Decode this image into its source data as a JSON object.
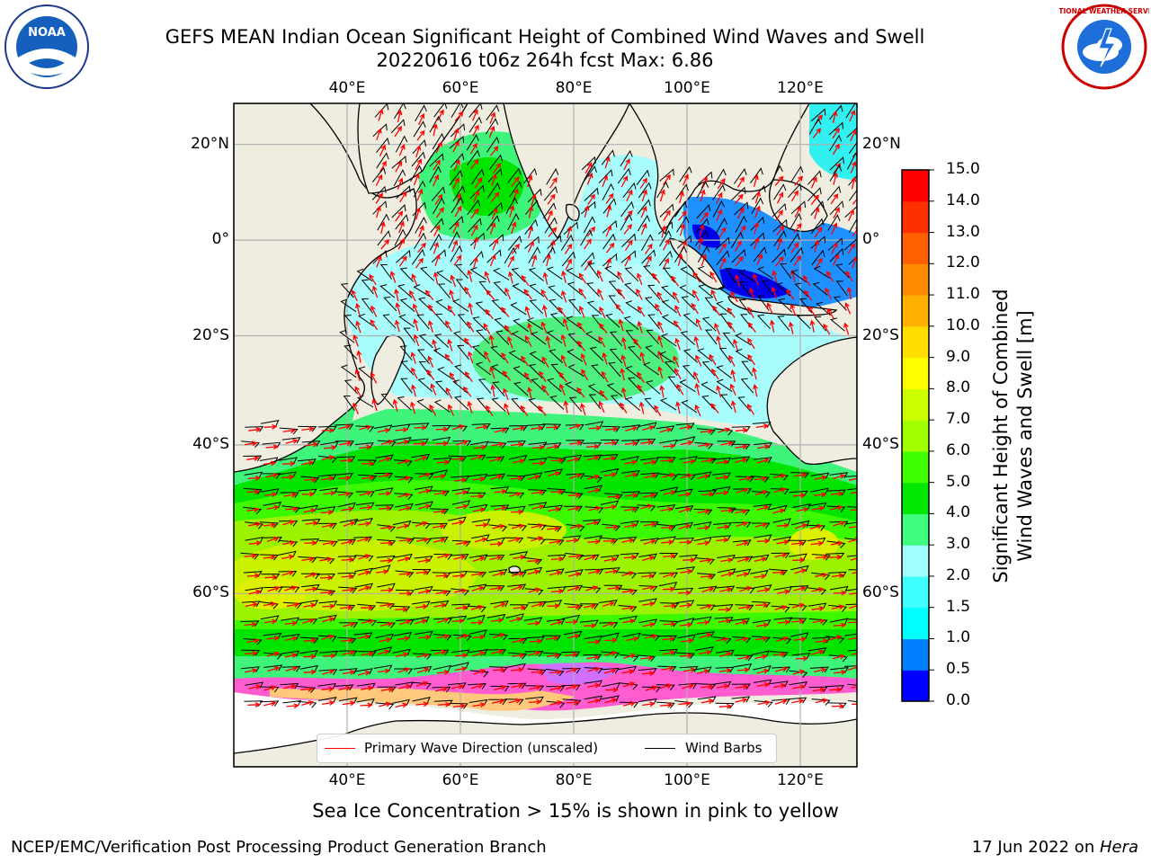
{
  "header": {
    "title_line1": "GEFS MEAN Indian Ocean Significant Height of Combined Wind Waves and Swell",
    "title_line2": "20220616 t06z 264h fcst   Max: 6.86",
    "left_logo_text": "NOAA",
    "right_logo_text": "NATIONAL WEATHER SERVICE"
  },
  "map": {
    "lon_labels": [
      "40°E",
      "60°E",
      "80°E",
      "100°E",
      "120°E"
    ],
    "lat_labels": [
      "20°N",
      "0°",
      "20°S",
      "40°S",
      "60°S"
    ],
    "lon_values": [
      40,
      60,
      80,
      100,
      120
    ],
    "lat_values": [
      20,
      0,
      -20,
      -40,
      -60
    ],
    "lon_range": [
      20,
      130
    ],
    "lat_range": [
      -74,
      28
    ],
    "land_color": "#efede0"
  },
  "legend": {
    "primary_wave": "Primary Wave Direction (unscaled)",
    "wind_barbs": "Wind Barbs"
  },
  "colorbar": {
    "title_line1": "Significant Height of Combined",
    "title_line2": "Wind Waves and Swell [m]",
    "tick_labels": [
      "0.0",
      "0.5",
      "1.0",
      "1.5",
      "2.0",
      "3.0",
      "4.0",
      "5.0",
      "6.0",
      "7.0",
      "8.0",
      "9.0",
      "10.0",
      "11.0",
      "12.0",
      "13.0",
      "14.0",
      "15.0"
    ],
    "colors": [
      "#0000ff",
      "#0080ff",
      "#00ffff",
      "#40ffff",
      "#a0ffff",
      "#40ff80",
      "#00e800",
      "#40ff00",
      "#a0ff00",
      "#ccff00",
      "#ffff00",
      "#ffdd00",
      "#ffb000",
      "#ff8c00",
      "#ff6000",
      "#ff3000",
      "#ff0000"
    ]
  },
  "notes": {
    "sea_ice": "Sea Ice Concentration > 15% is shown in pink to yellow",
    "branch": "NCEP/EMC/Verification Post Processing Product Generation Branch",
    "date": "17 Jun 2022 on ",
    "machine": "Hera"
  }
}
